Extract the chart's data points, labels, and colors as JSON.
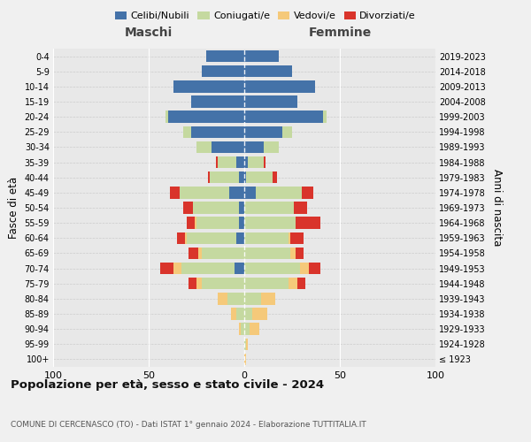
{
  "age_groups": [
    "100+",
    "95-99",
    "90-94",
    "85-89",
    "80-84",
    "75-79",
    "70-74",
    "65-69",
    "60-64",
    "55-59",
    "50-54",
    "45-49",
    "40-44",
    "35-39",
    "30-34",
    "25-29",
    "20-24",
    "15-19",
    "10-14",
    "5-9",
    "0-4"
  ],
  "birth_years": [
    "≤ 1923",
    "1924-1928",
    "1929-1933",
    "1934-1938",
    "1939-1943",
    "1944-1948",
    "1949-1953",
    "1954-1958",
    "1959-1963",
    "1964-1968",
    "1969-1973",
    "1974-1978",
    "1979-1983",
    "1984-1988",
    "1989-1993",
    "1994-1998",
    "1999-2003",
    "2004-2008",
    "2009-2013",
    "2014-2018",
    "2019-2023"
  ],
  "males": {
    "celibi": [
      0,
      0,
      0,
      0,
      0,
      0,
      5,
      0,
      4,
      3,
      3,
      8,
      3,
      4,
      17,
      28,
      40,
      28,
      37,
      22,
      20
    ],
    "coniugati": [
      0,
      0,
      2,
      4,
      9,
      22,
      28,
      22,
      26,
      22,
      24,
      26,
      15,
      10,
      8,
      4,
      1,
      0,
      0,
      0,
      0
    ],
    "vedovi": [
      0,
      0,
      1,
      3,
      5,
      3,
      4,
      2,
      1,
      1,
      0,
      0,
      0,
      0,
      0,
      0,
      0,
      0,
      0,
      0,
      0
    ],
    "divorziati": [
      0,
      0,
      0,
      0,
      0,
      4,
      7,
      5,
      4,
      4,
      5,
      5,
      1,
      1,
      0,
      0,
      0,
      0,
      0,
      0,
      0
    ]
  },
  "females": {
    "nubili": [
      0,
      0,
      0,
      0,
      0,
      0,
      0,
      0,
      0,
      0,
      0,
      6,
      1,
      2,
      10,
      20,
      41,
      28,
      37,
      25,
      18
    ],
    "coniugate": [
      0,
      1,
      3,
      4,
      9,
      23,
      29,
      24,
      23,
      27,
      26,
      24,
      14,
      8,
      8,
      5,
      2,
      0,
      0,
      0,
      0
    ],
    "vedove": [
      1,
      1,
      5,
      8,
      7,
      5,
      5,
      3,
      1,
      0,
      0,
      0,
      0,
      0,
      0,
      0,
      0,
      0,
      0,
      0,
      0
    ],
    "divorziate": [
      0,
      0,
      0,
      0,
      0,
      4,
      6,
      4,
      7,
      13,
      7,
      6,
      2,
      1,
      0,
      0,
      0,
      0,
      0,
      0,
      0
    ]
  },
  "colors": {
    "celibi": "#4472a8",
    "coniugati": "#c5d9a0",
    "vedovi": "#f5c97a",
    "divorziati": "#d9342b"
  },
  "xlim": 100,
  "title": "Popolazione per età, sesso e stato civile - 2024",
  "subtitle": "COMUNE DI CERCENASCO (TO) - Dati ISTAT 1° gennaio 2024 - Elaborazione TUTTITALIA.IT",
  "ylabel_left": "Fasce di età",
  "ylabel_right": "Anni di nascita",
  "xlabel_left": "Maschi",
  "xlabel_right": "Femmine",
  "bg_color": "#f0f0f0",
  "plot_bg_color": "#e8e8e8"
}
